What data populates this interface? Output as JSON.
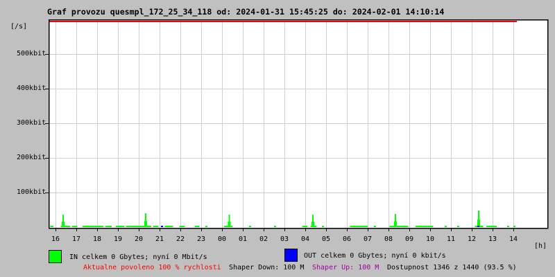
{
  "title": "Graf provozu quesmpl_172_25_34_118 od: 2024-01-31 15:45:25 do: 2024-02-01 14:10:14",
  "axes": {
    "y_unit": "[/s]",
    "x_unit": "[h]",
    "y_ticks": [
      {
        "label": "500kbit",
        "kbit": 500
      },
      {
        "label": "400kbit",
        "kbit": 400
      },
      {
        "label": "300kbit",
        "kbit": 300
      },
      {
        "label": "200kbit",
        "kbit": 200
      },
      {
        "label": "100kbit",
        "kbit": 100
      }
    ],
    "x_ticks": [
      "16",
      "17",
      "18",
      "19",
      "20",
      "21",
      "22",
      "23",
      "00",
      "01",
      "02",
      "03",
      "04",
      "05",
      "06",
      "07",
      "08",
      "09",
      "10",
      "11",
      "12",
      "13",
      "14"
    ]
  },
  "legend": {
    "in": {
      "label": "IN celkem 0 Gbytes; nyní 0 Mbit/s",
      "color": "#00ff00"
    },
    "out": {
      "label": "OUT celkem 0 Gbytes; nyní 0 kbit/s",
      "color": "#0000ff"
    }
  },
  "status": {
    "allowed": {
      "text": "Aktualne povoleno 100 % rychlosti",
      "color": "#ff0000"
    },
    "shaper_down": {
      "text": "Shaper Down: 100 M",
      "color": "#000000"
    },
    "shaper_up": {
      "text": "Shaper Up: 100 M",
      "color": "#a000a0"
    },
    "availability": {
      "text": "Dostupnost 1346 z 1440 (93.5 %)",
      "color": "#000000"
    }
  },
  "chart_data": {
    "type": "area",
    "title": "Graf provozu quesmpl_172_25_34_118",
    "time_from": "2024-01-31 15:45:25",
    "time_to": "2024-02-01 14:10:14",
    "xlabel": "[h]",
    "ylabel": "[/s] kbit",
    "ylim": [
      0,
      600
    ],
    "grid": true,
    "legend_position": "bottom",
    "x_axis": {
      "tick_labels": [
        "16",
        "17",
        "18",
        "19",
        "20",
        "21",
        "22",
        "23",
        "00",
        "01",
        "02",
        "03",
        "04",
        "05",
        "06",
        "07",
        "08",
        "09",
        "10",
        "11",
        "12",
        "13",
        "14"
      ],
      "first_tick_offset_hours": 0.25,
      "hours_per_tick": 1,
      "hours_span": 22.42
    },
    "y_axis": {
      "unit": "kbit/s",
      "ticks_kbit": [
        100,
        200,
        300,
        400,
        500
      ],
      "max_kbit": 600
    },
    "limit_line": {
      "kbit": 600,
      "color": "#ff0000",
      "from_hour": 0,
      "to_hour": 22.42
    },
    "series": [
      {
        "name": "IN",
        "color": "#00ff00",
        "total": "0 Gbytes",
        "now": "0 Mbit/s",
        "spikes": [
          {
            "hour": 0.62,
            "kbit": 36
          },
          {
            "hour": 4.58,
            "kbit": 40
          },
          {
            "hour": 8.6,
            "kbit": 36
          },
          {
            "hour": 12.62,
            "kbit": 36
          },
          {
            "hour": 16.58,
            "kbit": 38
          },
          {
            "hour": 20.58,
            "kbit": 48
          }
        ],
        "baseline_kbit": 3,
        "baseline_segments_hours": [
          [
            0.0,
            0.15
          ],
          [
            0.5,
            0.95
          ],
          [
            1.05,
            1.3
          ],
          [
            1.55,
            2.55
          ],
          [
            2.65,
            2.95
          ],
          [
            3.15,
            3.55
          ],
          [
            3.65,
            4.85
          ],
          [
            4.95,
            5.2
          ],
          [
            5.5,
            5.9
          ],
          [
            6.2,
            6.45
          ],
          [
            6.95,
            7.15
          ],
          [
            7.45,
            7.55
          ],
          [
            8.35,
            8.75
          ],
          [
            9.55,
            9.65
          ],
          [
            10.75,
            10.85
          ],
          [
            12.1,
            12.35
          ],
          [
            12.5,
            12.8
          ],
          [
            13.05,
            13.15
          ],
          [
            14.4,
            15.25
          ],
          [
            15.55,
            15.65
          ],
          [
            16.3,
            17.2
          ],
          [
            17.55,
            18.4
          ],
          [
            18.95,
            19.05
          ],
          [
            19.55,
            19.65
          ],
          [
            20.4,
            20.8
          ],
          [
            20.95,
            21.45
          ],
          [
            21.95,
            22.05
          ],
          [
            22.25,
            22.35
          ]
        ]
      },
      {
        "name": "OUT",
        "color": "#0000ff",
        "total": "0 Gbytes",
        "now": "0 kbit/s",
        "marks_hours": [
          5.35,
          20.55
        ],
        "kbit": 3
      }
    ]
  }
}
